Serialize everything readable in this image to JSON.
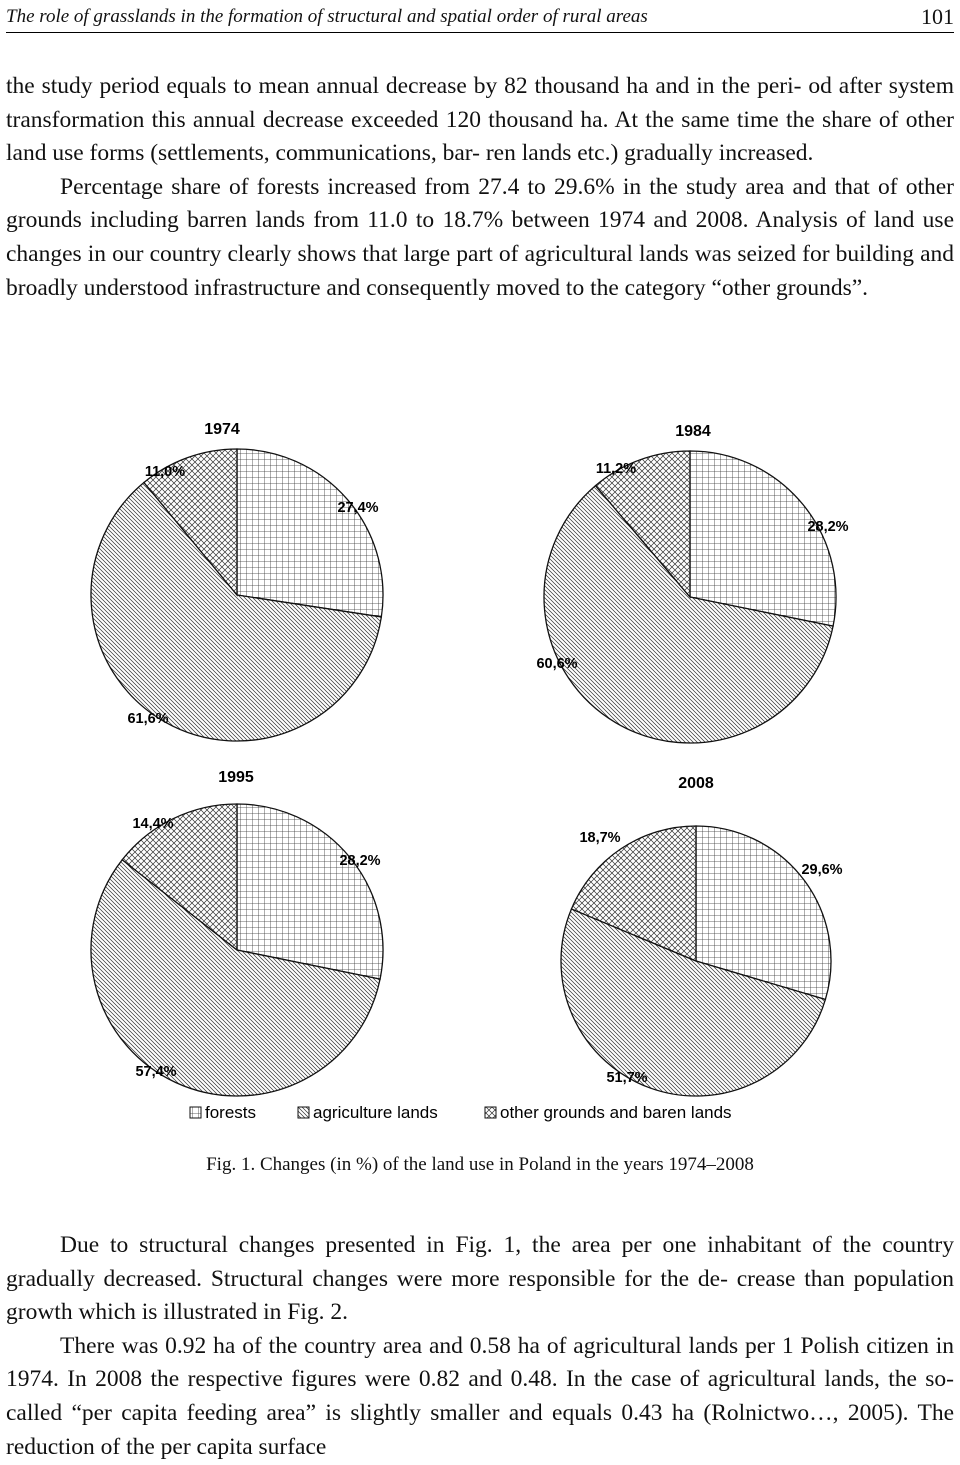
{
  "header": {
    "running_title": "The role of grasslands in the formation of structural and spatial order of rural areas",
    "page_number": "101"
  },
  "paragraph1": {
    "lines": [
      "the study period equals to mean annual decrease by 82 thousand ha and in the peri-",
      "od after system transformation this annual decrease exceeded 120 thousand ha. At",
      "the same time the share of other land use forms (settlements, communications, bar-",
      "ren lands etc.) gradually increased.",
      "Percentage share of forests increased from 27.4 to 29.6% in the study area and",
      "that of other grounds including barren lands from 11.0 to 18.7% between 1974 and",
      "2008. Analysis of land use changes in our country clearly shows that large part of",
      "agricultural lands was seized for building and broadly understood infrastructure",
      "and consequently moved to the category “other grounds”."
    ]
  },
  "chart_data": [
    {
      "type": "pie",
      "title": "1974",
      "categories": [
        "forests",
        "agriculture lands",
        "other grounds and baren lands"
      ],
      "values": [
        27.4,
        61.6,
        11.0
      ],
      "labels": [
        "27,4%",
        "61,6%",
        "11,0%"
      ]
    },
    {
      "type": "pie",
      "title": "1984",
      "categories": [
        "forests",
        "agriculture lands",
        "other grounds and baren lands"
      ],
      "values": [
        28.2,
        60.6,
        11.2
      ],
      "labels": [
        "28,2%",
        "60,6%",
        "11,2%"
      ]
    },
    {
      "type": "pie",
      "title": "1995",
      "categories": [
        "forests",
        "agriculture lands",
        "other grounds and baren lands"
      ],
      "values": [
        28.2,
        57.4,
        14.4
      ],
      "labels": [
        "28,2%",
        "57,4%",
        "14,4%"
      ]
    },
    {
      "type": "pie",
      "title": "2008",
      "categories": [
        "forests",
        "agriculture lands",
        "other grounds and baren lands"
      ],
      "values": [
        29.6,
        51.7,
        18.7
      ],
      "labels": [
        "29,6%",
        "51,7%",
        "18,7%"
      ]
    }
  ],
  "legend": {
    "placement": "bottom",
    "items": [
      "forests",
      "agriculture lands",
      "other grounds and baren lands"
    ]
  },
  "caption": "Fig. 1. Changes (in %) of the land use in Poland in the years 1974–2008",
  "paragraph2": {
    "lines": [
      "Due to structural changes presented in Fig. 1, the area per one inhabitant of the",
      "country gradually decreased. Structural changes were more responsible for the de-",
      "crease than population growth which is illustrated in Fig. 2.",
      "There was 0.92 ha of the country area and 0.58 ha of agricultural lands per 1",
      "Polish citizen in 1974. In 2008 the respective figures were 0.82 and 0.48. In the",
      "case of agricultural lands, the so-called “per capita feeding area” is slightly smaller",
      "and equals 0.43 ha  (Rolnictwo…, 2005).  The reduction of the per capita surface"
    ]
  }
}
